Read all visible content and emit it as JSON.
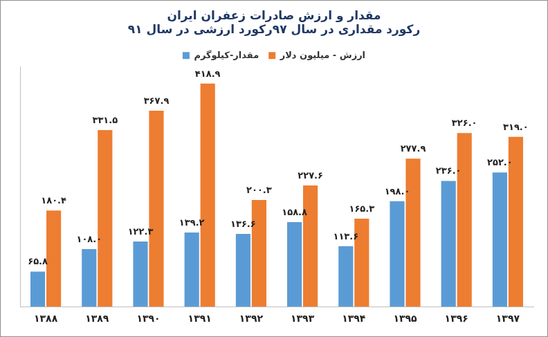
{
  "chart_data": {
    "type": "bar",
    "title": "مقدار و ارزش صادرات زعفران ایران",
    "subtitle": "رکورد مقداری در سال ۹۷رکورد ارزشی در سال ۹۱",
    "categories": [
      "۱۳۸۸",
      "۱۳۸۹",
      "۱۳۹۰",
      "۱۳۹۱",
      "۱۳۹۲",
      "۱۳۹۳",
      "۱۳۹۴",
      "۱۳۹۵",
      "۱۳۹۶",
      "۱۳۹۷"
    ],
    "series": [
      {
        "name": "مقدار-کیلوگرم",
        "color": "#5b9bd5",
        "values": [
          65.8,
          108.0,
          122.3,
          139.2,
          136.6,
          158.8,
          113.6,
          198.0,
          236.0,
          252.0
        ],
        "value_labels": [
          "۶۵.۸",
          "۱۰۸.۰",
          "۱۲۲.۳",
          "۱۳۹.۲",
          "۱۳۶.۶",
          "۱۵۸.۸",
          "۱۱۳.۶",
          "۱۹۸.۰",
          "۲۳۶.۰",
          "۲۵۲.۰"
        ]
      },
      {
        "name": "ارزش - میلیون دلار",
        "color": "#ed7d31",
        "values": [
          180.4,
          331.5,
          367.9,
          418.9,
          200.3,
          227.6,
          165.3,
          277.9,
          326.0,
          319.0
        ],
        "value_labels": [
          "۱۸۰.۴",
          "۳۳۱.۵",
          "۳۶۷.۹",
          "۴۱۸.۹",
          "۲۰۰.۳",
          "۲۲۷.۶",
          "۱۶۵.۳",
          "۲۷۷.۹",
          "۳۲۶.۰",
          "۳۱۹.۰"
        ]
      }
    ],
    "ylim": [
      0,
      450
    ],
    "grid": false,
    "legend": "top",
    "data_labels": true,
    "tick_labels": "x"
  }
}
